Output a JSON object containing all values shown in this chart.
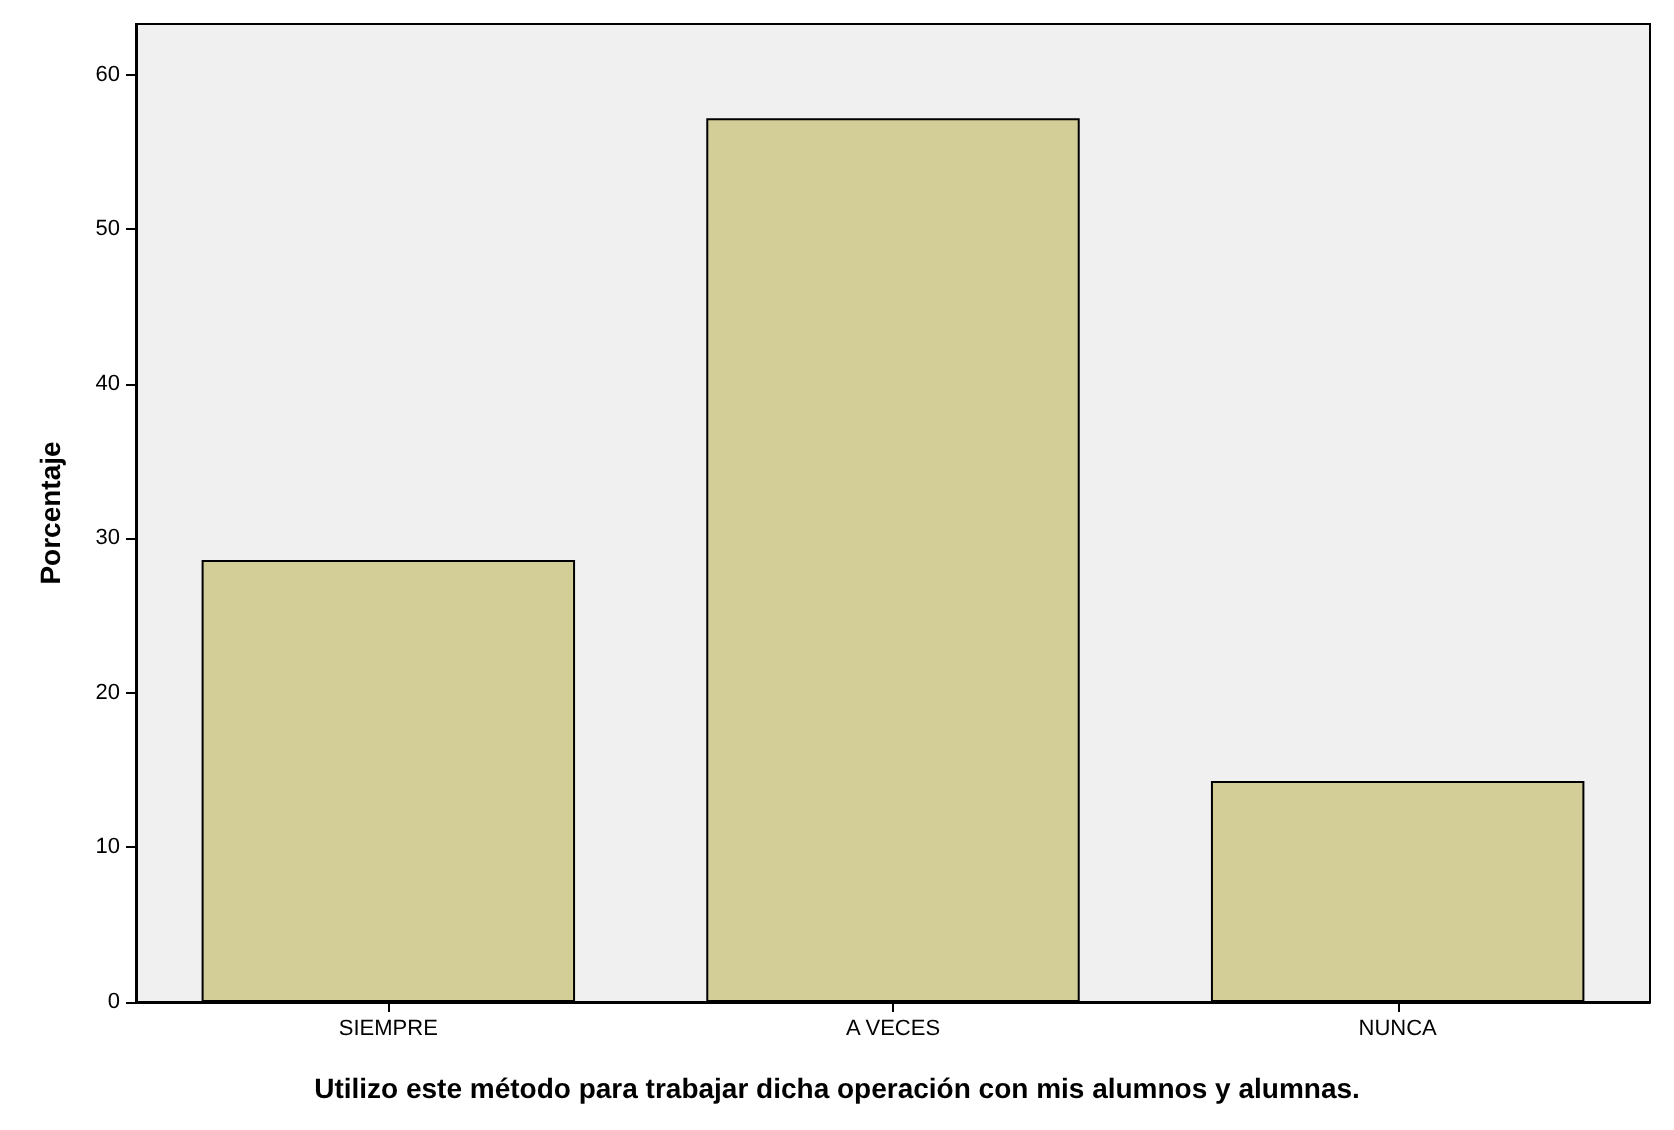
{
  "chart_data": {
    "type": "bar",
    "categories": [
      "SIEMPRE",
      "A VECES",
      "NUNCA"
    ],
    "values": [
      28.6,
      57.2,
      14.3
    ],
    "color": "#d3ce97",
    "ylabel": "Porcentaje",
    "xlabel": "Utilizo este método para trabajar dicha operación con mis alumnos y alumnas.",
    "ylim": [
      0,
      63.3
    ],
    "yticks": [
      0,
      10,
      20,
      30,
      40,
      50,
      60
    ],
    "grid": false
  }
}
